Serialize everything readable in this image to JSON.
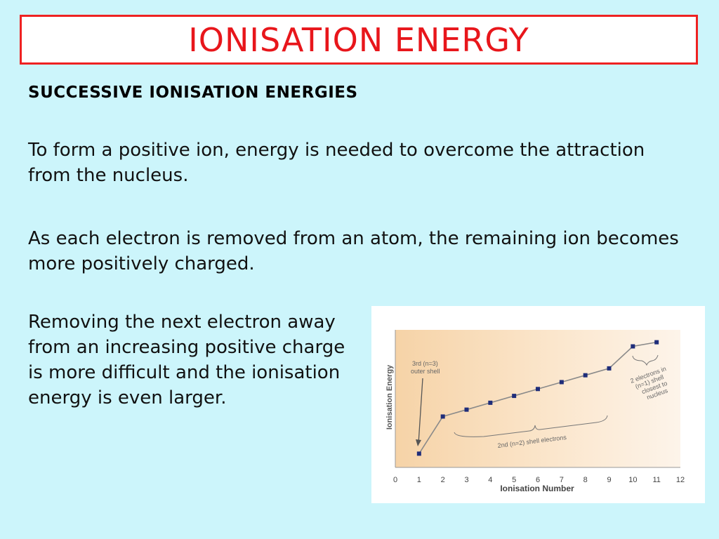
{
  "slide": {
    "title": "IONISATION ENERGY",
    "subheading": "SUCCESSIVE IONISATION ENERGIES",
    "paragraph1": "To form a positive ion, energy is needed to overcome the attraction from the nucleus.",
    "paragraph2": "As each electron is removed from an atom, the remaining ion becomes more positively charged.",
    "paragraph3": "Removing the next electron away from an increasing positive charge is more difficult and the ionisation energy is even larger.",
    "colors": {
      "background": "#ccf5fb",
      "title": "#e8161b",
      "border": "#ee2222"
    }
  },
  "chart_data": {
    "type": "line",
    "xlabel": "Ionisation Number",
    "ylabel": "Ionisation Energy",
    "x_ticks": [
      "0",
      "1",
      "2",
      "3",
      "4",
      "5",
      "6",
      "7",
      "8",
      "9",
      "10",
      "11",
      "12"
    ],
    "xlim": [
      0,
      12
    ],
    "ylim": [
      0,
      100
    ],
    "x": [
      1,
      2,
      3,
      4,
      5,
      6,
      7,
      8,
      9,
      10,
      11
    ],
    "values": [
      10,
      37,
      42,
      47,
      52,
      57,
      62,
      67,
      72,
      88,
      91
    ],
    "annotations": {
      "outer": "3rd (n=3) outer shell",
      "middle": "2nd (n=2) shell electrons",
      "inner": "2 electrons in (n=1) shell closest to nucleus"
    }
  }
}
